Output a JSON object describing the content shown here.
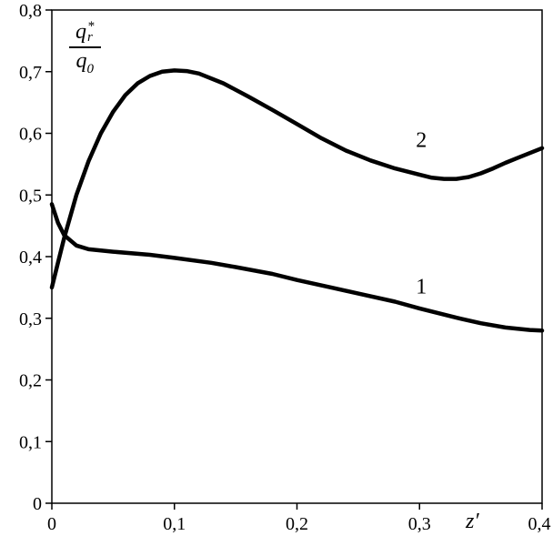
{
  "chart_data": {
    "type": "line",
    "title": "",
    "xlabel": "z′",
    "ylabel": "q_r^* / q_0",
    "xlim": [
      0,
      0.4
    ],
    "ylim": [
      0,
      0.8
    ],
    "grid": false,
    "legend": "none",
    "x_ticks": [
      {
        "v": 0,
        "label": "0"
      },
      {
        "v": 0.1,
        "label": "0,1"
      },
      {
        "v": 0.2,
        "label": "0,2"
      },
      {
        "v": 0.3,
        "label": "0,3"
      },
      {
        "v": 0.4,
        "label": "0,4"
      }
    ],
    "y_ticks": [
      {
        "v": 0,
        "label": "0"
      },
      {
        "v": 0.1,
        "label": "0,1"
      },
      {
        "v": 0.2,
        "label": "0,2"
      },
      {
        "v": 0.3,
        "label": "0,3"
      },
      {
        "v": 0.4,
        "label": "0,4"
      },
      {
        "v": 0.5,
        "label": "0,5"
      },
      {
        "v": 0.6,
        "label": "0,6"
      },
      {
        "v": 0.7,
        "label": "0,7"
      },
      {
        "v": 0.8,
        "label": "0,8"
      }
    ],
    "series": [
      {
        "name": "1",
        "label": {
          "x": 0.297,
          "y": 0.34
        },
        "points": [
          [
            0,
            0.485
          ],
          [
            0.005,
            0.455
          ],
          [
            0.01,
            0.435
          ],
          [
            0.02,
            0.418
          ],
          [
            0.03,
            0.412
          ],
          [
            0.05,
            0.408
          ],
          [
            0.08,
            0.403
          ],
          [
            0.1,
            0.398
          ],
          [
            0.13,
            0.39
          ],
          [
            0.15,
            0.383
          ],
          [
            0.18,
            0.372
          ],
          [
            0.2,
            0.362
          ],
          [
            0.23,
            0.349
          ],
          [
            0.25,
            0.34
          ],
          [
            0.28,
            0.327
          ],
          [
            0.3,
            0.316
          ],
          [
            0.33,
            0.301
          ],
          [
            0.35,
            0.292
          ],
          [
            0.37,
            0.285
          ],
          [
            0.39,
            0.281
          ],
          [
            0.4,
            0.28
          ]
        ]
      },
      {
        "name": "2",
        "label": {
          "x": 0.297,
          "y": 0.578
        },
        "points": [
          [
            0,
            0.35
          ],
          [
            0.005,
            0.39
          ],
          [
            0.01,
            0.43
          ],
          [
            0.02,
            0.5
          ],
          [
            0.03,
            0.555
          ],
          [
            0.04,
            0.6
          ],
          [
            0.05,
            0.635
          ],
          [
            0.06,
            0.662
          ],
          [
            0.07,
            0.681
          ],
          [
            0.08,
            0.693
          ],
          [
            0.09,
            0.7
          ],
          [
            0.1,
            0.702
          ],
          [
            0.11,
            0.701
          ],
          [
            0.12,
            0.697
          ],
          [
            0.14,
            0.681
          ],
          [
            0.16,
            0.66
          ],
          [
            0.18,
            0.638
          ],
          [
            0.2,
            0.615
          ],
          [
            0.22,
            0.592
          ],
          [
            0.24,
            0.572
          ],
          [
            0.26,
            0.556
          ],
          [
            0.28,
            0.543
          ],
          [
            0.3,
            0.533
          ],
          [
            0.31,
            0.528
          ],
          [
            0.32,
            0.526
          ],
          [
            0.33,
            0.526
          ],
          [
            0.34,
            0.529
          ],
          [
            0.35,
            0.535
          ],
          [
            0.36,
            0.543
          ],
          [
            0.37,
            0.552
          ],
          [
            0.38,
            0.56
          ],
          [
            0.39,
            0.568
          ],
          [
            0.4,
            0.576
          ]
        ]
      }
    ]
  },
  "labels": {
    "x": "z′",
    "y_num_base": "q",
    "y_num_sup": "*",
    "y_num_sub": "r",
    "y_den_base": "q",
    "y_den_sub": "0"
  },
  "style": {
    "curve_color": "#000000",
    "axis_color": "#000000",
    "background": "#ffffff"
  }
}
